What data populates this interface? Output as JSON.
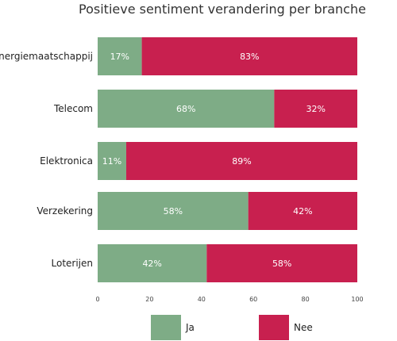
{
  "chart_data": {
    "type": "bar",
    "orientation": "horizontal",
    "stacked": true,
    "title": "Positieve sentiment verandering per branche",
    "categories": [
      "Energiemaatschappij",
      "Telecom",
      "Elektronica",
      "Verzekering",
      "Loterijen"
    ],
    "series": [
      {
        "name": "Ja",
        "values": [
          17,
          68,
          11,
          58,
          42
        ],
        "labels": [
          "17%",
          "68%",
          "11%",
          "58%",
          "42%"
        ],
        "color": "#7eac86"
      },
      {
        "name": "Nee",
        "values": [
          83,
          32,
          89,
          42,
          58
        ],
        "labels": [
          "83%",
          "32%",
          "89%",
          "42%",
          "58%"
        ],
        "color": "#c8204f"
      }
    ],
    "xlim": [
      0,
      100
    ],
    "xticks": [
      "0",
      "20",
      "40",
      "60",
      "80",
      "100"
    ],
    "grid": false,
    "legend_position": "bottom"
  }
}
